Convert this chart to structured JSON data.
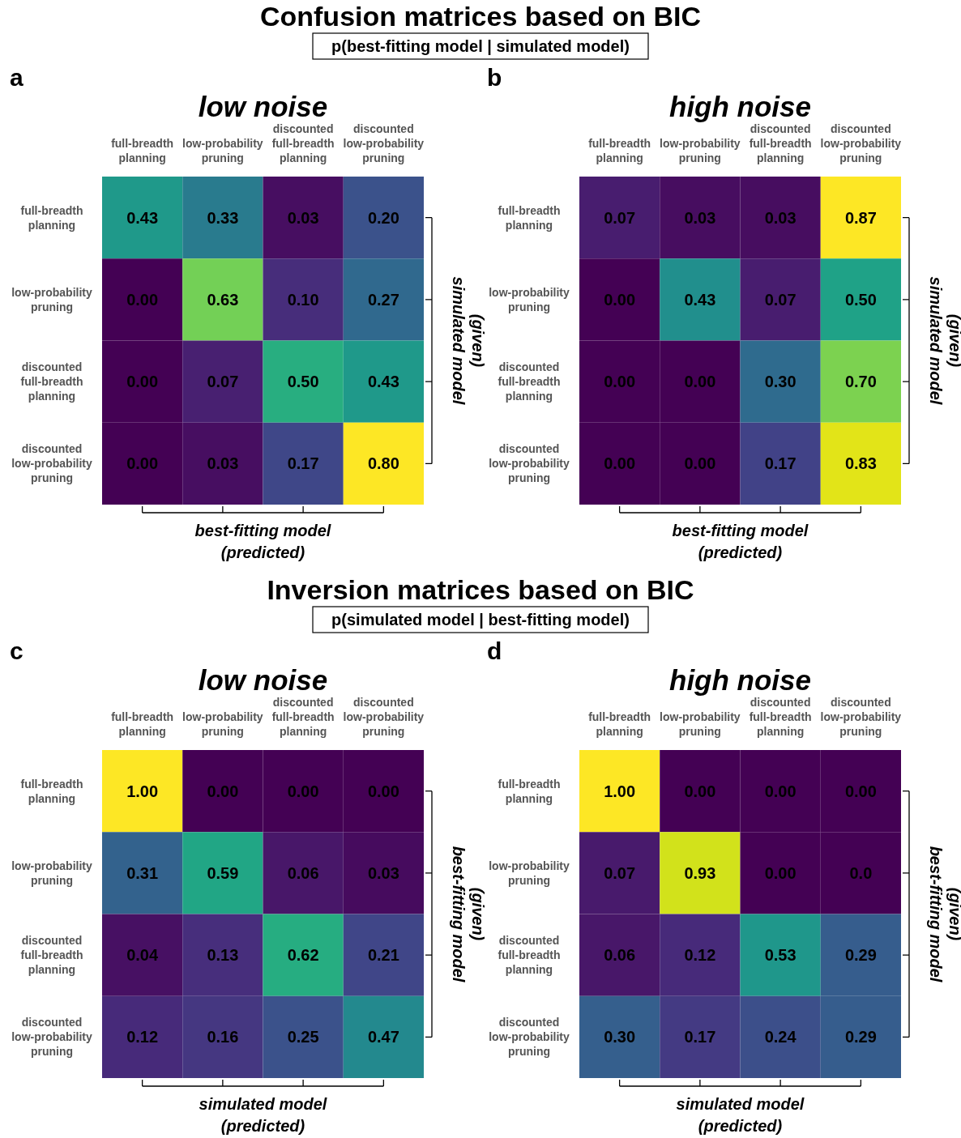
{
  "chart_data": [
    {
      "type": "heatmap",
      "title": "low noise",
      "xlabel": "best-fitting model\n(predicted)",
      "ylabel": "(given)\nsimulated model",
      "annotations": [
        "a",
        "Confusion matrices based on BIC",
        "p(best-fitting model | simulated model)"
      ],
      "categories": [
        "full-breadth\nplanning",
        "low-probability\npruning",
        "discounted\nfull-breadth\nplanning",
        "discounted\nlow-probability\npruning"
      ],
      "y_categories": [
        "full-breadth\nplanning",
        "low-probability\npruning",
        "discounted\nfull-breadth\nplanning",
        "discounted\nlow-probability\npruning"
      ],
      "cells": [
        [
          0.43,
          0.33,
          0.03,
          0.2
        ],
        [
          0.0,
          0.63,
          0.1,
          0.27
        ],
        [
          0.0,
          0.07,
          0.5,
          0.43
        ],
        [
          0.0,
          0.03,
          0.17,
          0.8
        ]
      ],
      "cell_labels": [
        [
          "0.43",
          "0.33",
          "0.03",
          "0.20"
        ],
        [
          "0.00",
          "0.63",
          "0.10",
          "0.27"
        ],
        [
          "0.00",
          "0.07",
          "0.50",
          "0.43"
        ],
        [
          "0.00",
          "0.03",
          "0.17",
          "0.80"
        ]
      ]
    },
    {
      "type": "heatmap",
      "title": "high noise",
      "xlabel": "best-fitting model\n(predicted)",
      "ylabel": "(given)\nsimulated model",
      "annotations": [
        "b"
      ],
      "categories": [
        "full-breadth\nplanning",
        "low-probability\npruning",
        "discounted\nfull-breadth\nplanning",
        "discounted\nlow-probability\npruning"
      ],
      "y_categories": [
        "full-breadth\nplanning",
        "low-probability\npruning",
        "discounted\nfull-breadth\nplanning",
        "discounted\nlow-probability\npruning"
      ],
      "cells": [
        [
          0.07,
          0.03,
          0.03,
          0.87
        ],
        [
          0.0,
          0.43,
          0.07,
          0.5
        ],
        [
          0.0,
          0.0,
          0.3,
          0.7
        ],
        [
          0.0,
          0.0,
          0.17,
          0.83
        ]
      ],
      "cell_labels": [
        [
          "0.07",
          "0.03",
          "0.03",
          "0.87"
        ],
        [
          "0.00",
          "0.43",
          "0.07",
          "0.50"
        ],
        [
          "0.00",
          "0.00",
          "0.30",
          "0.70"
        ],
        [
          "0.00",
          "0.00",
          "0.17",
          "0.83"
        ]
      ]
    },
    {
      "type": "heatmap",
      "title": "low noise",
      "xlabel": "simulated model\n(predicted)",
      "ylabel": "(given)\nbest-fitting model",
      "annotations": [
        "c",
        "Inversion matrices based on BIC",
        "p(simulated model | best-fitting model)"
      ],
      "categories": [
        "full-breadth\nplanning",
        "low-probability\npruning",
        "discounted\nfull-breadth\nplanning",
        "discounted\nlow-probability\npruning"
      ],
      "y_categories": [
        "full-breadth\nplanning",
        "low-probability\npruning",
        "discounted\nfull-breadth\nplanning",
        "discounted\nlow-probability\npruning"
      ],
      "cells": [
        [
          1.0,
          0.0,
          0.0,
          0.0
        ],
        [
          0.31,
          0.59,
          0.06,
          0.03
        ],
        [
          0.04,
          0.13,
          0.62,
          0.21
        ],
        [
          0.12,
          0.16,
          0.25,
          0.47
        ]
      ],
      "cell_labels": [
        [
          "1.00",
          "0.00",
          "0.00",
          "0.00"
        ],
        [
          "0.31",
          "0.59",
          "0.06",
          "0.03"
        ],
        [
          "0.04",
          "0.13",
          "0.62",
          "0.21"
        ],
        [
          "0.12",
          "0.16",
          "0.25",
          "0.47"
        ]
      ]
    },
    {
      "type": "heatmap",
      "title": "high noise",
      "xlabel": "simulated model\n(predicted)",
      "ylabel": "(given)\nbest-fitting model",
      "annotations": [
        "d"
      ],
      "categories": [
        "full-breadth\nplanning",
        "low-probability\npruning",
        "discounted\nfull-breadth\nplanning",
        "discounted\nlow-probability\npruning"
      ],
      "y_categories": [
        "full-breadth\nplanning",
        "low-probability\npruning",
        "discounted\nfull-breadth\nplanning",
        "discounted\nlow-probability\npruning"
      ],
      "cells": [
        [
          1.0,
          0.0,
          0.0,
          0.0
        ],
        [
          0.07,
          0.93,
          0.0,
          0.0
        ],
        [
          0.06,
          0.12,
          0.53,
          0.29
        ],
        [
          0.3,
          0.17,
          0.24,
          0.29
        ]
      ],
      "cell_labels": [
        [
          "1.00",
          "0.00",
          "0.00",
          "0.00"
        ],
        [
          "0.07",
          "0.93",
          "0.00",
          "0.0"
        ],
        [
          "0.06",
          "0.12",
          "0.53",
          "0.29"
        ],
        [
          "0.30",
          "0.17",
          "0.24",
          "0.29"
        ]
      ]
    }
  ]
}
